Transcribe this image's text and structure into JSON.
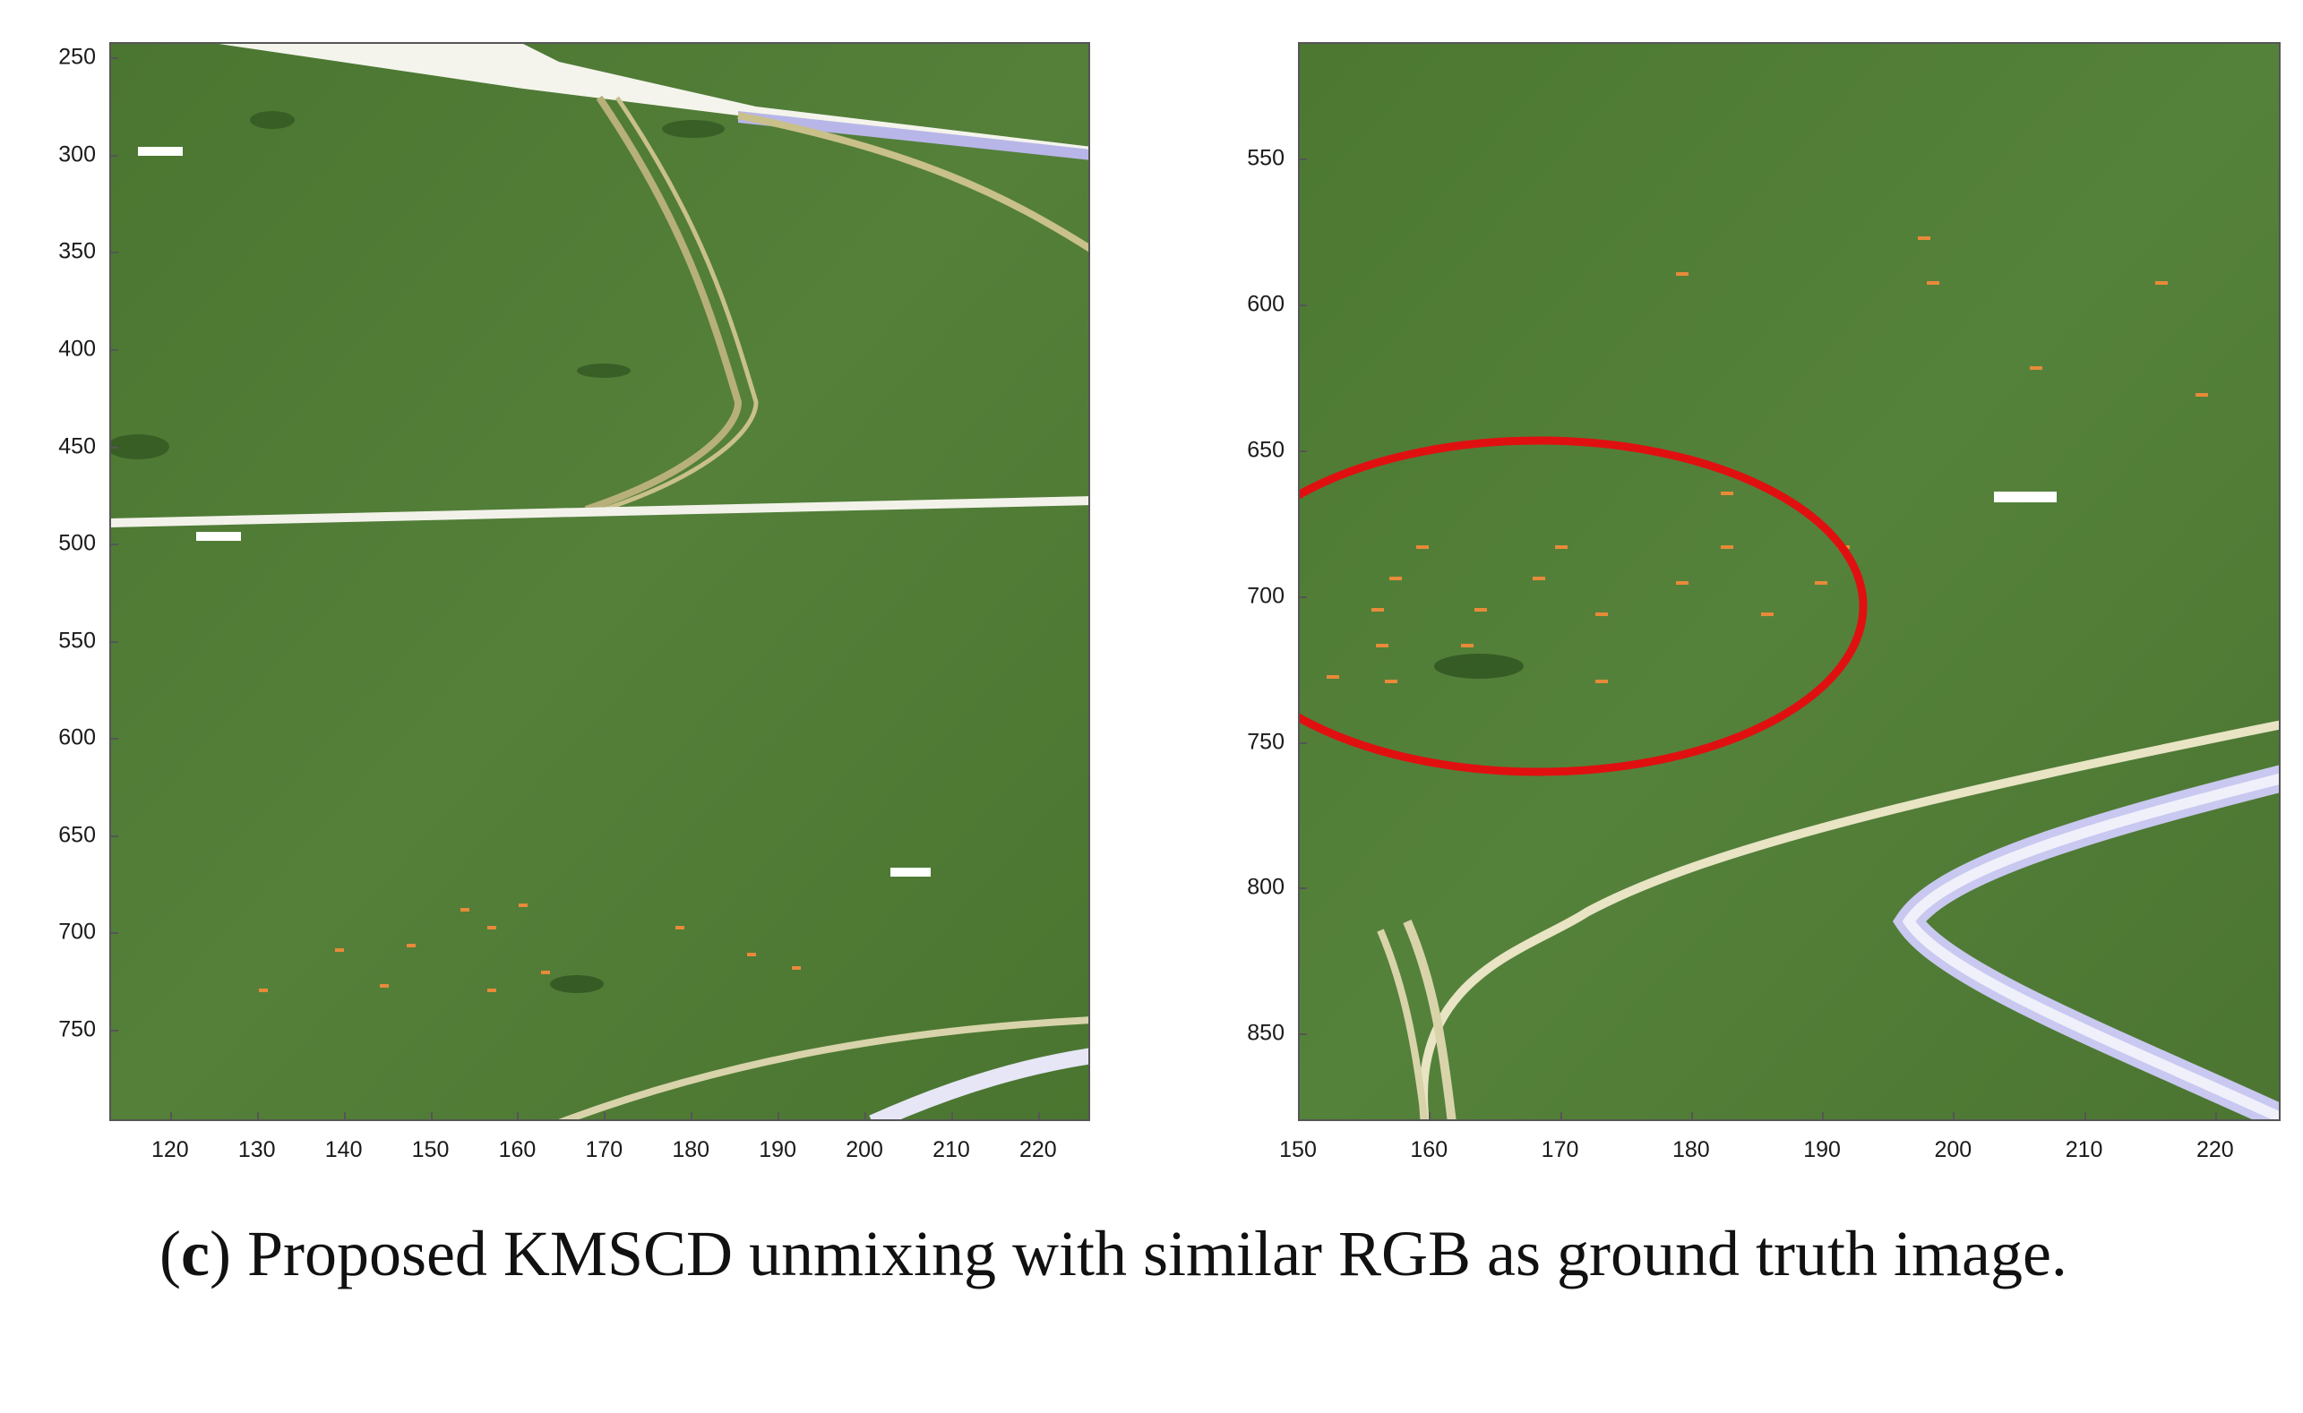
{
  "panels": [
    {
      "id": "left",
      "x_ticks": [
        120,
        130,
        140,
        150,
        160,
        170,
        180,
        190,
        200,
        210,
        220
      ],
      "y_ticks": [
        250,
        300,
        350,
        400,
        450,
        500,
        550,
        600,
        650,
        700,
        750
      ],
      "xlim": [
        113,
        226
      ],
      "ylim": [
        242,
        797
      ]
    },
    {
      "id": "right",
      "x_ticks": [
        150,
        160,
        170,
        180,
        190,
        200,
        210,
        220
      ],
      "y_ticks": [
        550,
        600,
        650,
        700,
        750,
        800,
        850
      ],
      "xlim": [
        150,
        225
      ],
      "ylim": [
        510,
        880
      ]
    }
  ],
  "colors": {
    "grass": "#4e7a34",
    "grass_dark": "#3e6628",
    "path_white": "#f2f2ea",
    "path_lavender": "#b8b6e8",
    "track_tan": "#c9c08a",
    "highlight_circle": "#e01010",
    "dot_orange": "#e88a3a"
  },
  "caption": {
    "label_open": "(",
    "label_letter": "c",
    "label_close": ")",
    "text": " Proposed KMSCD unmixing with similar RGB as ground truth image."
  }
}
